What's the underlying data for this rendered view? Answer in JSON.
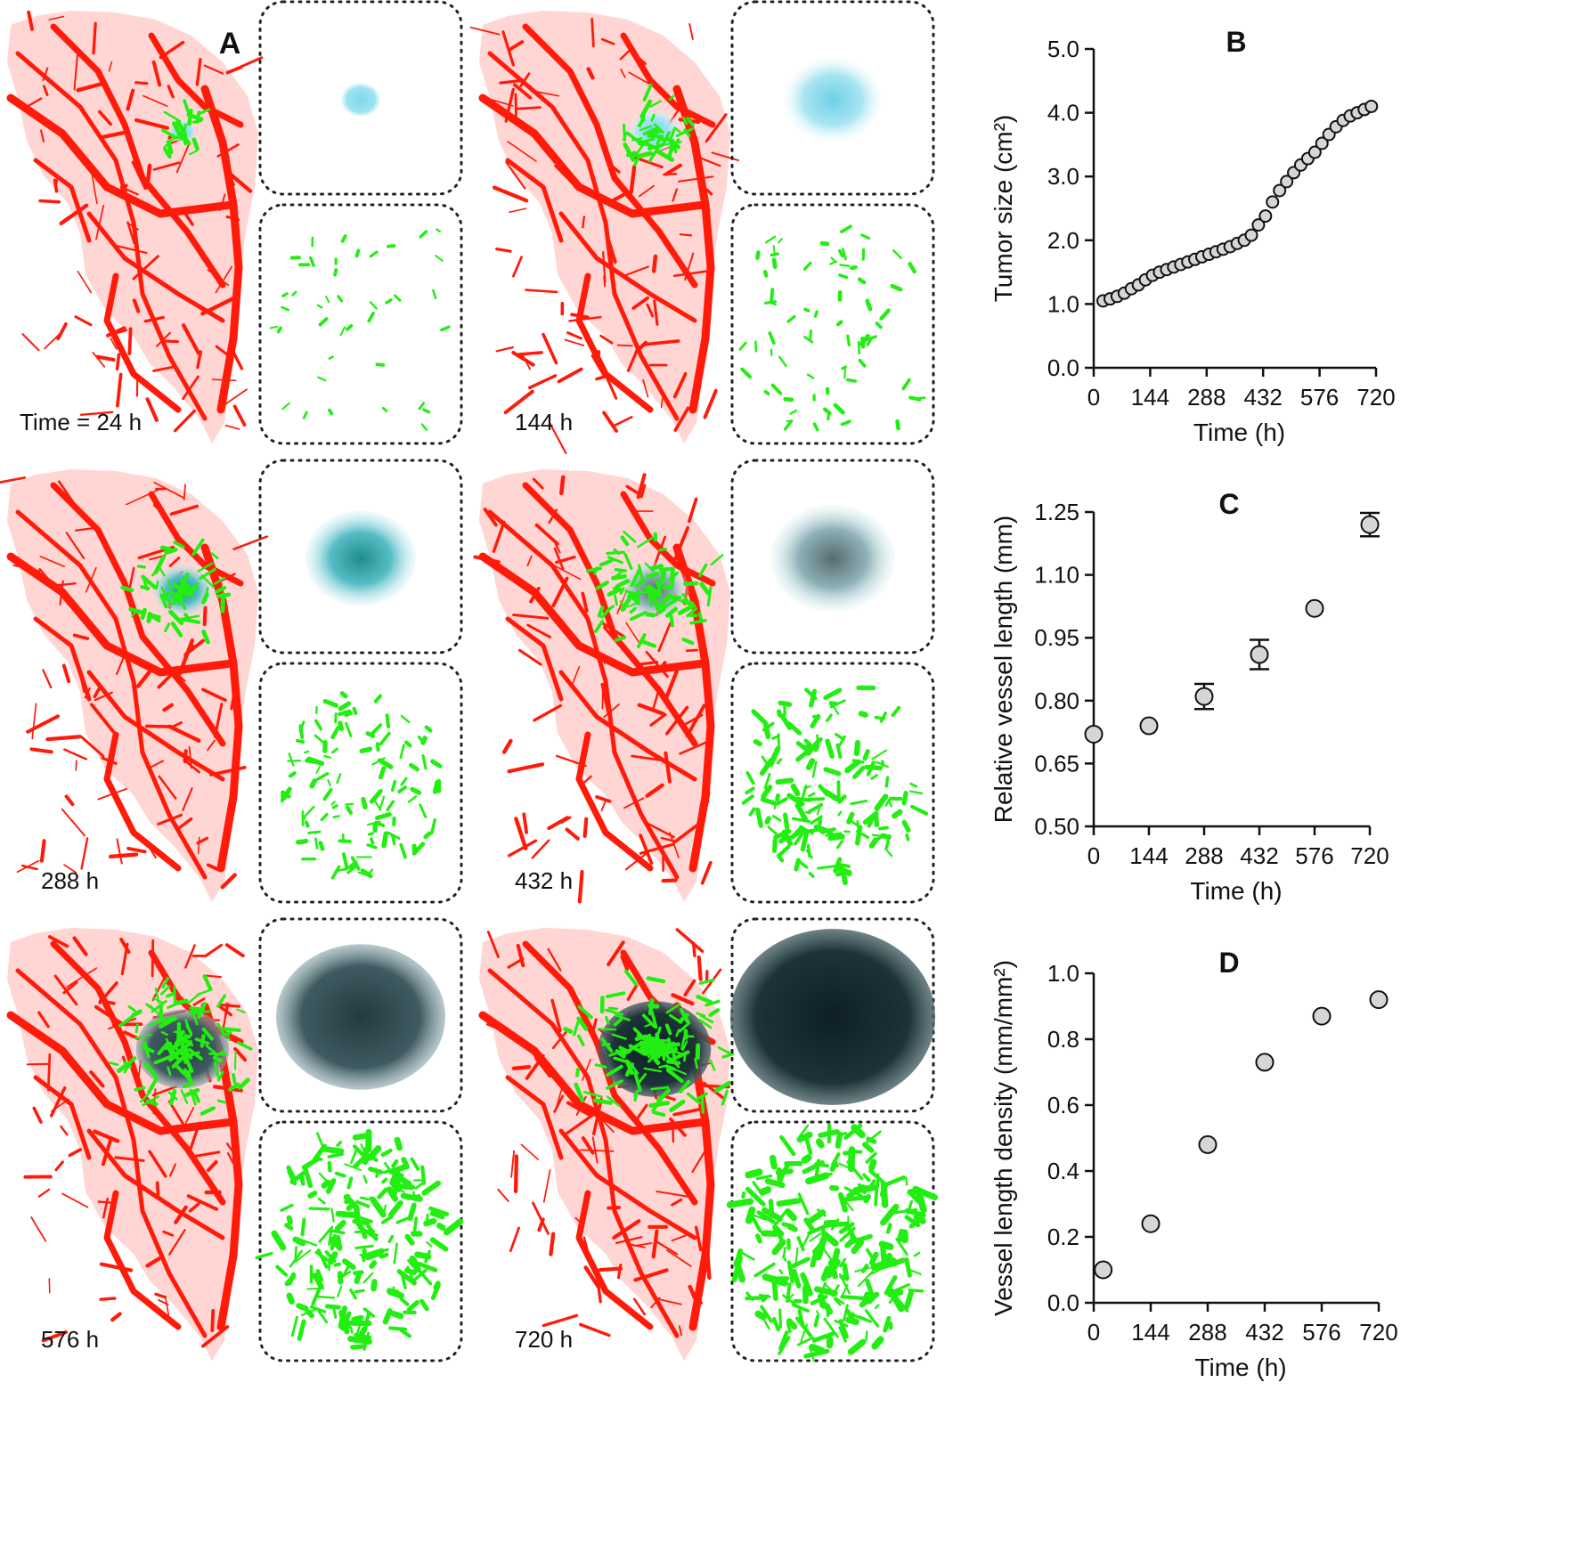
{
  "panel_a": {
    "label": "A",
    "time_labels": [
      "Time = 24 h",
      "144 h",
      "288 h",
      "432 h",
      "576 h",
      "720 h"
    ],
    "colors": {
      "vessel": "#ff1a0a",
      "new_vessel": "#22ee11",
      "tumor_early": "#87d8ea",
      "tumor_late": "#1d3f46"
    }
  },
  "chart_data": [
    {
      "panel": "B",
      "type": "scatter",
      "xlabel": "Time (h)",
      "ylabel": "Tumor size (cm²)",
      "xlim": [
        0,
        720
      ],
      "ylim": [
        0,
        5
      ],
      "xticks": [
        0,
        144,
        288,
        432,
        576,
        720
      ],
      "xticklabels": [
        "0",
        "144",
        "288",
        "432",
        "576",
        "720"
      ],
      "yticks": [
        0,
        1,
        2,
        3,
        4,
        5
      ],
      "yticklabels": [
        "0.0",
        "1.0",
        "2.0",
        "3.0",
        "4.0",
        "5.0"
      ],
      "x": [
        24,
        42,
        60,
        78,
        96,
        114,
        132,
        150,
        168,
        186,
        204,
        222,
        240,
        258,
        276,
        294,
        312,
        330,
        348,
        366,
        384,
        402,
        420,
        438,
        456,
        474,
        492,
        510,
        528,
        546,
        564,
        582,
        600,
        618,
        636,
        654,
        672,
        690,
        708
      ],
      "y": [
        1.05,
        1.08,
        1.12,
        1.17,
        1.24,
        1.3,
        1.38,
        1.45,
        1.5,
        1.54,
        1.58,
        1.62,
        1.66,
        1.7,
        1.74,
        1.78,
        1.82,
        1.86,
        1.9,
        1.95,
        2.0,
        2.08,
        2.24,
        2.38,
        2.6,
        2.78,
        2.92,
        3.06,
        3.18,
        3.28,
        3.38,
        3.52,
        3.66,
        3.78,
        3.88,
        3.95,
        4.0,
        4.05,
        4.1
      ]
    },
    {
      "panel": "C",
      "type": "scatter",
      "xlabel": "Time (h)",
      "ylabel": "Relative vessel length (mm)",
      "xlim": [
        0,
        720
      ],
      "ylim": [
        0.5,
        1.25
      ],
      "xticks": [
        0,
        144,
        288,
        432,
        576,
        720
      ],
      "xticklabels": [
        "0",
        "144",
        "288",
        "432",
        "576",
        "720"
      ],
      "yticks": [
        0.5,
        0.65,
        0.8,
        0.95,
        1.1,
        1.25
      ],
      "yticklabels": [
        "0.50",
        "0.65",
        "0.80",
        "0.95",
        "1.10",
        "1.25"
      ],
      "x": [
        0,
        144,
        288,
        432,
        576,
        720
      ],
      "y": [
        0.72,
        0.74,
        0.81,
        0.91,
        1.02,
        1.22
      ],
      "yerr": [
        0,
        0,
        0.03,
        0.035,
        0,
        0.028
      ]
    },
    {
      "panel": "D",
      "type": "scatter",
      "xlabel": "Time (h)",
      "ylabel": "Vessel length density (mm/mm²)",
      "xlim": [
        0,
        720
      ],
      "ylim": [
        0,
        1.0
      ],
      "xticks": [
        0,
        144,
        288,
        432,
        576,
        720
      ],
      "xticklabels": [
        "0",
        "144",
        "288",
        "432",
        "576",
        "720"
      ],
      "yticks": [
        0,
        0.2,
        0.4,
        0.6,
        0.8,
        1.0
      ],
      "yticklabels": [
        "0.0",
        "0.2",
        "0.4",
        "0.6",
        "0.8",
        "1.0"
      ],
      "x": [
        24,
        144,
        288,
        432,
        576,
        720
      ],
      "y": [
        0.1,
        0.24,
        0.48,
        0.73,
        0.87,
        0.92
      ]
    }
  ]
}
